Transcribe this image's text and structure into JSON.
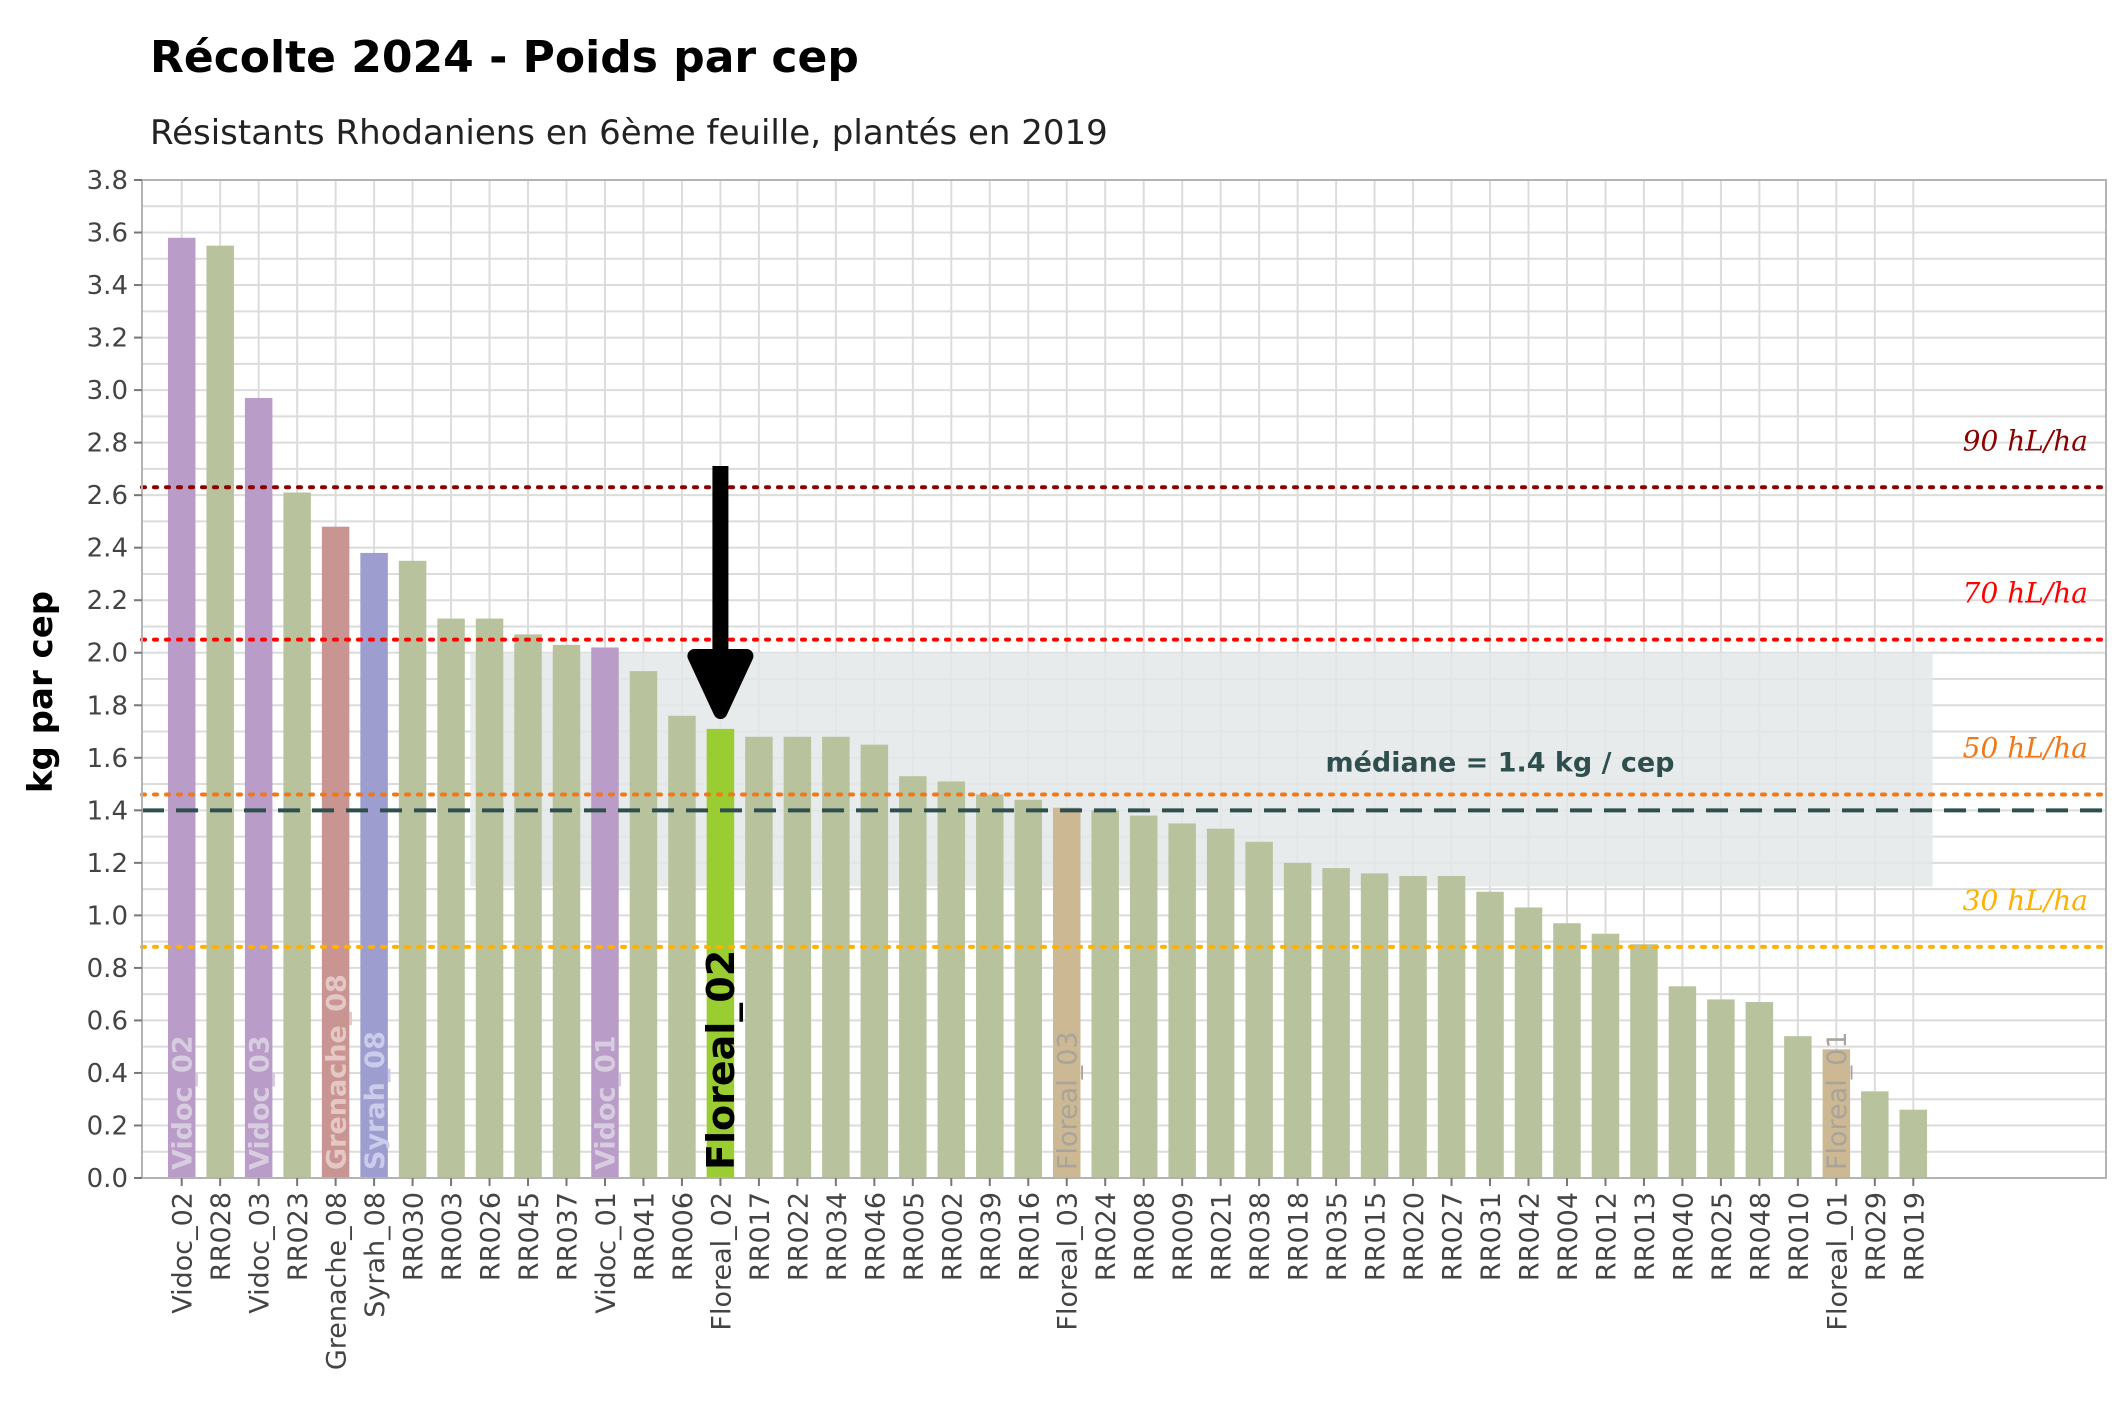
{
  "chart_data": {
    "type": "bar",
    "title": "Récolte 2024 - Poids par cep",
    "subtitle": "Résistants Rhodaniens en 6ème feuille, plantés en 2019",
    "xlabel": "",
    "ylabel": "kg par cep",
    "ylim": [
      0,
      3.8
    ],
    "yticks": [
      "0.0",
      "0.2",
      "0.4",
      "0.6",
      "0.8",
      "1.0",
      "1.2",
      "1.4",
      "1.6",
      "1.8",
      "2.0",
      "2.2",
      "2.4",
      "2.6",
      "2.8",
      "3.0",
      "3.2",
      "3.4",
      "3.6",
      "3.8"
    ],
    "grid": true,
    "categories": [
      "Vidoc_02",
      "RR028",
      "Vidoc_03",
      "RR023",
      "Grenache_08",
      "Syrah_08",
      "RR030",
      "RR003",
      "RR026",
      "RR045",
      "RR037",
      "Vidoc_01",
      "RR041",
      "RR006",
      "Floreal_02",
      "RR017",
      "RR022",
      "RR034",
      "RR046",
      "RR005",
      "RR002",
      "RR039",
      "RR016",
      "Floreal_03",
      "RR024",
      "RR008",
      "RR009",
      "RR021",
      "RR038",
      "RR018",
      "RR035",
      "RR015",
      "RR020",
      "RR027",
      "RR031",
      "RR042",
      "RR004",
      "RR012",
      "RR013",
      "RR040",
      "RR025",
      "RR048",
      "RR010",
      "Floreal_01",
      "RR029",
      "RR019"
    ],
    "values": [
      3.58,
      3.55,
      2.97,
      2.61,
      2.48,
      2.38,
      2.35,
      2.13,
      2.13,
      2.07,
      2.03,
      2.02,
      1.93,
      1.76,
      1.71,
      1.68,
      1.68,
      1.68,
      1.65,
      1.53,
      1.51,
      1.46,
      1.44,
      1.41,
      1.4,
      1.38,
      1.35,
      1.33,
      1.28,
      1.2,
      1.18,
      1.16,
      1.15,
      1.15,
      1.09,
      1.03,
      0.97,
      0.93,
      0.89,
      0.73,
      0.68,
      0.67,
      0.54,
      0.49,
      0.33,
      0.26
    ],
    "bar_colors": [
      "#b99cc7",
      "#b8c39e",
      "#b99cc7",
      "#b8c39e",
      "#c99593",
      "#9d9dd0",
      "#b8c39e",
      "#b8c39e",
      "#b8c39e",
      "#b8c39e",
      "#b8c39e",
      "#b99cc7",
      "#b8c39e",
      "#b8c39e",
      "#9acd32",
      "#b8c39e",
      "#b8c39e",
      "#b8c39e",
      "#b8c39e",
      "#b8c39e",
      "#b8c39e",
      "#b8c39e",
      "#b8c39e",
      "#cdb894",
      "#b8c39e",
      "#b8c39e",
      "#b8c39e",
      "#b8c39e",
      "#b8c39e",
      "#b8c39e",
      "#b8c39e",
      "#b8c39e",
      "#b8c39e",
      "#b8c39e",
      "#b8c39e",
      "#b8c39e",
      "#b8c39e",
      "#b8c39e",
      "#b8c39e",
      "#b8c39e",
      "#b8c39e",
      "#b8c39e",
      "#b8c39e",
      "#cdb894",
      "#b8c39e",
      "#b8c39e"
    ],
    "bar_labels": [
      {
        "index": 0,
        "text": "Vidoc_02",
        "color": "#d8cde0",
        "bold": true,
        "bottom": 0.0
      },
      {
        "index": 2,
        "text": "Vidoc_03",
        "color": "#d8cde0",
        "bold": true,
        "bottom": 0.0
      },
      {
        "index": 4,
        "text": "Grenache_08",
        "color": "#e5c8c6",
        "bold": true,
        "bottom": 0.0
      },
      {
        "index": 5,
        "text": "Syrah_08",
        "color": "#cbcbea",
        "bold": true,
        "bottom": 0.0
      },
      {
        "index": 11,
        "text": "Vidoc_01",
        "color": "#d8cde0",
        "bold": true,
        "bottom": 0.0
      },
      {
        "index": 14,
        "text": "Floreal_02",
        "color": "#000000",
        "bold": true,
        "bottom": 0.0,
        "large": true
      },
      {
        "index": 23,
        "text": "Floreal_03",
        "color": "#a8a49c",
        "bold": false,
        "bottom": 0.0
      },
      {
        "index": 43,
        "text": "Floreal_01",
        "color": "#a8a49c",
        "bold": false,
        "bottom": 0.0
      }
    ],
    "reference_lines": [
      {
        "label": "90 hL/ha",
        "y": 2.63,
        "color": "#8b0000",
        "style": "dotted"
      },
      {
        "label": "70 hL/ha",
        "y": 2.05,
        "color": "#ff0000",
        "style": "dotted"
      },
      {
        "label": "50 hL/ha",
        "y": 1.46,
        "color": "#f07818",
        "style": "dotted"
      },
      {
        "label": "30 hL/ha",
        "y": 0.88,
        "color": "#ffb000",
        "style": "dotted"
      }
    ],
    "median": {
      "label": "médiane = 1.4 kg / cep",
      "y": 1.4,
      "color": "#2f4f4f"
    },
    "band": {
      "y_from": 1.11,
      "y_to": 2.0,
      "x_from_index": 7.5,
      "x_to_index": 45.5,
      "color": "#e3e8e8"
    },
    "arrow": {
      "target_index": 14,
      "color": "#000000"
    }
  }
}
